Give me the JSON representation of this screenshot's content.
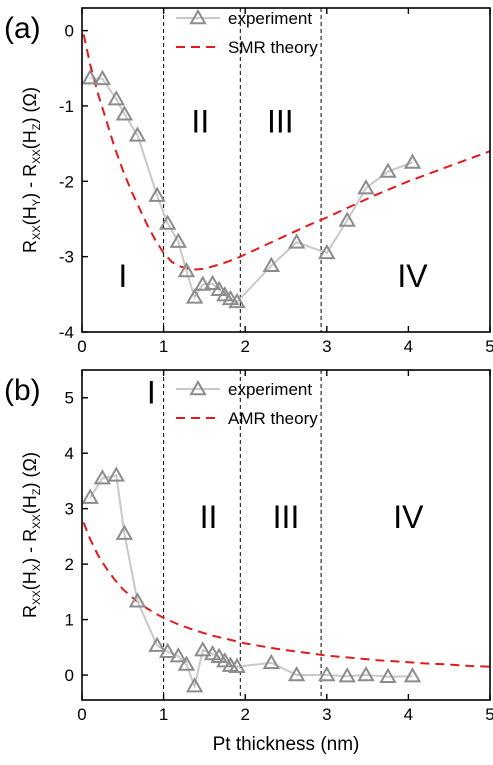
{
  "chart_data": [
    {
      "type": "scatter",
      "panel_label": "(a)",
      "ylabel_main": "R",
      "ylabel_parts": [
        "R",
        "XX",
        "(H",
        "Y",
        ") - R",
        "XX",
        "(H",
        "Z",
        ") (Ω)"
      ],
      "xlim": [
        0,
        5
      ],
      "ylim": [
        -4,
        0.3
      ],
      "xticks": [
        "0",
        "1",
        "2",
        "3",
        "4",
        "5"
      ],
      "yticks": [
        "-4",
        "-3",
        "-2",
        "-1",
        "0"
      ],
      "ytick_values": [
        -4,
        -3,
        -2,
        -1,
        0
      ],
      "vlines": [
        1.0,
        1.94,
        2.93
      ],
      "regions": [
        {
          "label": "I",
          "x": 0.5,
          "y": -3.4
        },
        {
          "label": "II",
          "x": 1.45,
          "y": -1.35
        },
        {
          "label": "III",
          "x": 2.43,
          "y": -1.35
        },
        {
          "label": "IV",
          "x": 4.05,
          "y": -3.4
        }
      ],
      "series": [
        {
          "name": "experiment",
          "color": "#8c8c8c",
          "line_color": "#c8c8c8",
          "x": [
            0.1,
            0.25,
            0.42,
            0.52,
            0.68,
            0.92,
            1.05,
            1.18,
            1.28,
            1.38,
            1.48,
            1.6,
            1.68,
            1.75,
            1.82,
            1.9,
            2.32,
            2.63,
            3.0,
            3.25,
            3.48,
            3.75,
            4.05
          ],
          "y": [
            -0.63,
            -0.64,
            -0.91,
            -1.11,
            -1.39,
            -2.19,
            -2.56,
            -2.8,
            -3.19,
            -3.54,
            -3.37,
            -3.36,
            -3.44,
            -3.51,
            -3.56,
            -3.6,
            -3.12,
            -2.81,
            -2.95,
            -2.52,
            -2.09,
            -1.87,
            -1.75
          ]
        },
        {
          "name": "SMR theory",
          "color": "#e31a1c",
          "style": "dashed",
          "x": [
            0.02,
            0.1,
            0.2,
            0.3,
            0.4,
            0.5,
            0.6,
            0.7,
            0.8,
            0.9,
            1.0,
            1.1,
            1.2,
            1.3,
            1.4,
            1.5,
            1.6,
            1.7,
            1.8,
            1.9,
            2.0,
            2.2,
            2.4,
            2.6,
            2.8,
            3.0,
            3.2,
            3.4,
            3.6,
            3.8,
            4.0,
            4.2,
            4.4,
            4.6,
            4.8,
            5.0
          ],
          "y": [
            -0.05,
            -0.45,
            -0.85,
            -1.2,
            -1.55,
            -1.85,
            -2.12,
            -2.35,
            -2.58,
            -2.78,
            -2.95,
            -3.07,
            -3.13,
            -3.16,
            -3.17,
            -3.16,
            -3.13,
            -3.1,
            -3.06,
            -3.02,
            -2.97,
            -2.87,
            -2.77,
            -2.67,
            -2.57,
            -2.48,
            -2.38,
            -2.28,
            -2.18,
            -2.09,
            -2.0,
            -1.92,
            -1.84,
            -1.76,
            -1.68,
            -1.6
          ]
        }
      ],
      "legend": {
        "position": "top-center",
        "entries": [
          "experiment",
          "SMR theory"
        ]
      }
    },
    {
      "type": "scatter",
      "panel_label": "(b)",
      "ylabel_parts": [
        "R",
        "XX",
        "(H",
        "X",
        ") - R",
        "XX",
        "(H",
        "Z",
        ") (Ω)"
      ],
      "xlabel": "Pt thickness (nm)",
      "xlim": [
        0,
        5
      ],
      "ylim": [
        -0.45,
        5.5
      ],
      "xticks": [
        "0",
        "1",
        "2",
        "3",
        "4",
        "5"
      ],
      "yticks": [
        "0",
        "1",
        "2",
        "3",
        "4",
        "5"
      ],
      "ytick_values": [
        0,
        1,
        2,
        3,
        4,
        5
      ],
      "vlines": [
        1.0,
        1.94,
        2.93
      ],
      "regions": [
        {
          "label": "I",
          "x": 0.85,
          "y": 4.9
        },
        {
          "label": "II",
          "x": 1.55,
          "y": 2.65
        },
        {
          "label": "III",
          "x": 2.5,
          "y": 2.65
        },
        {
          "label": "IV",
          "x": 4.0,
          "y": 2.65
        }
      ],
      "series": [
        {
          "name": "experiment",
          "color": "#8c8c8c",
          "line_color": "#c8c8c8",
          "x": [
            0.1,
            0.25,
            0.42,
            0.52,
            0.68,
            0.92,
            1.05,
            1.18,
            1.28,
            1.38,
            1.48,
            1.6,
            1.68,
            1.75,
            1.82,
            1.9,
            2.32,
            2.63,
            3.0,
            3.25,
            3.48,
            3.75,
            4.05
          ],
          "y": [
            3.2,
            3.55,
            3.6,
            2.55,
            1.33,
            0.53,
            0.42,
            0.34,
            0.19,
            -0.2,
            0.45,
            0.38,
            0.33,
            0.25,
            0.17,
            0.15,
            0.22,
            0.0,
            0.0,
            -0.02,
            0.0,
            -0.03,
            -0.02
          ]
        },
        {
          "name": "AMR theory",
          "color": "#e31a1c",
          "style": "dashed",
          "x": [
            0.02,
            0.1,
            0.2,
            0.3,
            0.4,
            0.5,
            0.6,
            0.7,
            0.8,
            0.9,
            1.0,
            1.2,
            1.4,
            1.6,
            1.8,
            2.0,
            2.2,
            2.4,
            2.6,
            2.8,
            3.0,
            3.3,
            3.6,
            3.9,
            4.2,
            4.5,
            4.8,
            5.0
          ],
          "y": [
            2.75,
            2.45,
            2.15,
            1.92,
            1.72,
            1.55,
            1.42,
            1.3,
            1.2,
            1.11,
            1.03,
            0.9,
            0.8,
            0.71,
            0.64,
            0.57,
            0.52,
            0.47,
            0.43,
            0.39,
            0.35,
            0.31,
            0.27,
            0.24,
            0.21,
            0.19,
            0.16,
            0.15
          ]
        }
      ],
      "legend": {
        "position": "top-center",
        "entries": [
          "experiment",
          "AMR theory"
        ]
      }
    }
  ]
}
